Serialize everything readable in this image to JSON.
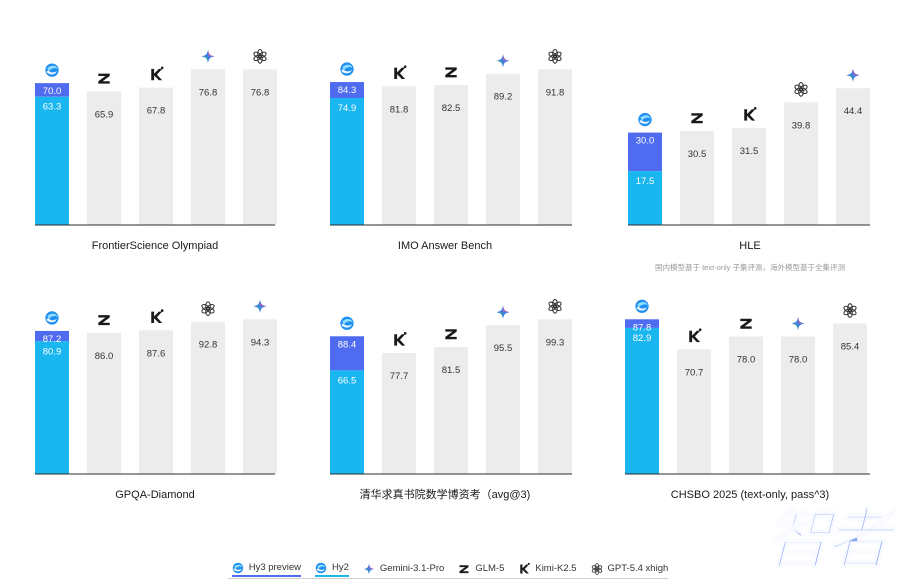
{
  "colors": {
    "hy3": "#4f6bef",
    "hy2": "#19b6ef",
    "other": "#ececec",
    "value_on_gray": "#333333",
    "value_on_blue": "#ffffff",
    "axis": "#2b2b2b",
    "watermark": "#6a8bf7"
  },
  "icons": {
    "Hy3 preview": "hunyuan-globe-icon",
    "Hy2": "hunyuan-globe-icon",
    "Gemini-3.1-Pro": "gemini-star-icon",
    "GLM-5": "glm-z-icon",
    "Kimi-K2.5": "kimi-k-icon",
    "GPT-5.4 xhigh": "openai-knot-icon"
  },
  "legend": [
    {
      "label": "Hy3 preview",
      "icon": "hunyuan-globe-icon",
      "underline": "#4f6bef"
    },
    {
      "label": "Hy2",
      "icon": "hunyuan-globe-icon",
      "underline": "#19b6ef"
    },
    {
      "label": "Gemini-3.1-Pro",
      "icon": "gemini-star-icon"
    },
    {
      "label": "GLM-5",
      "icon": "glm-z-icon"
    },
    {
      "label": "Kimi-K2.5",
      "icon": "kimi-k-icon"
    },
    {
      "label": "GPT-5.4 xhigh",
      "icon": "openai-knot-icon"
    }
  ],
  "watermark": "智者",
  "chart_data": [
    {
      "type": "bar",
      "title": "FrontierScience Olympiad",
      "subtitle": "",
      "categories": [
        "Hy",
        "GLM-5",
        "Kimi-K2.5",
        "Gemini-3.1-Pro",
        "GPT-5.4 xhigh"
      ],
      "hy3": 70.0,
      "hy2": 63.3,
      "others": [
        65.9,
        67.8,
        76.8,
        76.8
      ],
      "ylim": [
        0,
        100
      ]
    },
    {
      "type": "bar",
      "title": "IMO Answer Bench",
      "subtitle": "",
      "categories": [
        "Hy",
        "Kimi-K2.5",
        "GLM-5",
        "Gemini-3.1-Pro",
        "GPT-5.4 xhigh"
      ],
      "hy3": 84.3,
      "hy2": 74.9,
      "others": [
        81.8,
        82.5,
        89.2,
        91.8
      ],
      "ylim": [
        0,
        100
      ]
    },
    {
      "type": "bar",
      "title": "HLE",
      "subtitle": "国内模型基于 text-only 子集评测，海外模型基于全集评测",
      "categories": [
        "Hy",
        "GLM-5",
        "Kimi-K2.5",
        "GPT-5.4 xhigh",
        "Gemini-3.1-Pro"
      ],
      "hy3": 30.0,
      "hy2": 17.5,
      "others": [
        30.5,
        31.5,
        39.8,
        44.4
      ],
      "ylim": [
        0,
        50
      ]
    },
    {
      "type": "bar",
      "title": "GPQA-Diamond",
      "subtitle": "",
      "categories": [
        "Hy",
        "GLM-5",
        "Kimi-K2.5",
        "GPT-5.4 xhigh",
        "Gemini-3.1-Pro"
      ],
      "hy3": 87.2,
      "hy2": 80.9,
      "others": [
        86.0,
        87.6,
        92.8,
        94.3
      ],
      "ylim": [
        0,
        100
      ]
    },
    {
      "type": "bar",
      "title": "清华求真书院数学博资考（avg@3)",
      "subtitle": "",
      "categories": [
        "Hy",
        "Kimi-K2.5",
        "GLM-5",
        "Gemini-3.1-Pro",
        "GPT-5.4 xhigh"
      ],
      "hy3": 88.4,
      "hy2": 66.5,
      "others": [
        77.7,
        81.5,
        95.5,
        99.3
      ],
      "ylim": [
        0,
        100
      ]
    },
    {
      "type": "bar",
      "title": "CHSBO 2025 (text-only, pass^3)",
      "subtitle": "",
      "categories": [
        "Hy",
        "Kimi-K2.5",
        "GLM-5",
        "Gemini-3.1-Pro",
        "GPT-5.4 xhigh"
      ],
      "hy3": 87.8,
      "hy2": 82.9,
      "others": [
        70.7,
        78.0,
        78.0,
        85.4
      ],
      "ylim": [
        0,
        100
      ]
    }
  ]
}
